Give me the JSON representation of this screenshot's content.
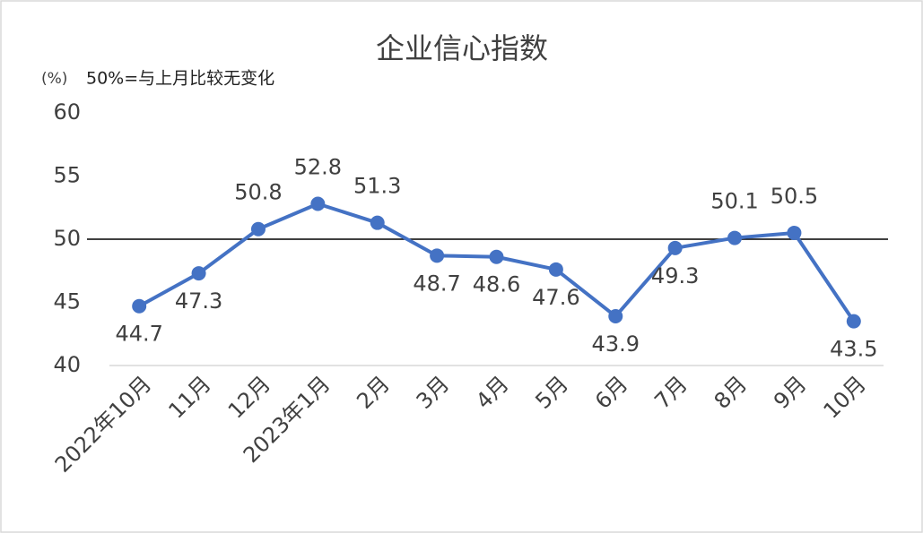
{
  "chart_data": {
    "type": "line",
    "title": "企业信心指数",
    "unit_label": "(%)",
    "note": "50%=与上月比较无变化",
    "categories": [
      "2022年10月",
      "11月",
      "12月",
      "2023年1月",
      "2月",
      "3月",
      "4月",
      "5月",
      "6月",
      "7月",
      "8月",
      "9月",
      "10月"
    ],
    "values": [
      44.7,
      47.3,
      50.8,
      52.8,
      51.3,
      48.7,
      48.6,
      47.6,
      43.9,
      49.3,
      50.1,
      50.5,
      43.5
    ],
    "color": "#4472c4",
    "reference_line": 50,
    "reference_color": "#000000",
    "ylim": [
      40,
      60
    ],
    "yticks": [
      40,
      45,
      50,
      55,
      60
    ],
    "grid": false
  }
}
